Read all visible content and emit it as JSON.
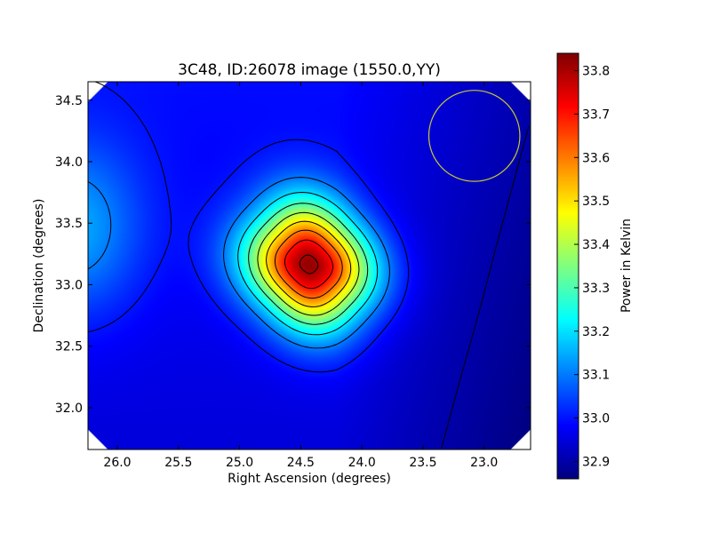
{
  "chart_data": {
    "type": "heatmap",
    "title": "3C48, ID:26078 image (1550.0,YY)",
    "xlabel": "Right Ascension (degrees)",
    "ylabel": "Declination (degrees)",
    "colorbar_label": "Power in Kelvin",
    "xlim": [
      26.24,
      22.62
    ],
    "ylim": [
      31.66,
      34.65
    ],
    "x_ticks": [
      26.0,
      25.5,
      25.0,
      24.5,
      24.0,
      23.5,
      23.0
    ],
    "x_tick_labels": [
      "26.0",
      "25.5",
      "25.0",
      "24.5",
      "24.0",
      "23.5",
      "23.0"
    ],
    "y_ticks": [
      32.0,
      32.5,
      33.0,
      33.5,
      34.0,
      34.5
    ],
    "y_tick_labels": [
      "32.0",
      "32.5",
      "33.0",
      "33.5",
      "34.0",
      "34.5"
    ],
    "color_range": [
      32.86,
      33.84
    ],
    "colorbar_ticks": [
      32.9,
      33.0,
      33.1,
      33.2,
      33.3,
      33.4,
      33.5,
      33.6,
      33.7,
      33.8
    ],
    "colorbar_tick_labels": [
      "32.9",
      "33.0",
      "33.1",
      "33.2",
      "33.3",
      "33.4",
      "33.5",
      "33.6",
      "33.7",
      "33.8"
    ],
    "colormap": "jet",
    "peak": {
      "ra": 24.43,
      "dec": 33.16,
      "value": 33.84
    },
    "contour_levels": [
      32.9,
      33.0,
      33.1,
      33.2,
      33.3,
      33.4,
      33.5,
      33.6,
      33.7,
      33.8
    ],
    "beam_circle": {
      "ra": 23.08,
      "dec": 34.21,
      "radius_deg": 0.37,
      "color": "#c8c832"
    },
    "grid": false,
    "contour_color": "#000000"
  }
}
